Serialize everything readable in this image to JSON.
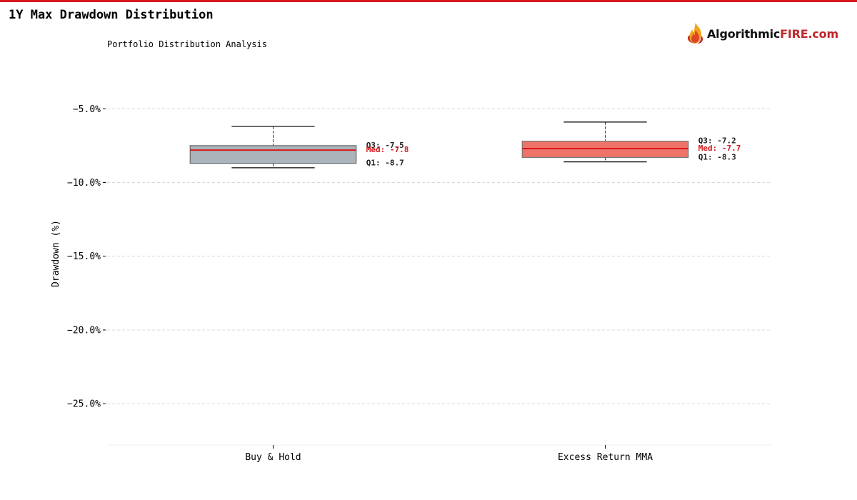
{
  "header": {
    "title": "1Y Max Drawdown Distribution",
    "subtitle": "Portfolio Distribution Analysis",
    "accent_color": "#d7191c"
  },
  "logo": {
    "text_main": "Algorithmic",
    "text_brand": "FIRE",
    "text_suffix": ".com",
    "icon": "flame-icon"
  },
  "chart_data": {
    "type": "box",
    "title": "1Y Max Drawdown Distribution",
    "subtitle": "Portfolio Distribution Analysis",
    "ylabel": "Drawdown (%)",
    "xlabel": "",
    "ylim": [
      -27.8,
      -1.5
    ],
    "yticks": [
      -5,
      -10,
      -15,
      -20,
      -25
    ],
    "ytick_labels": [
      "−5.0%",
      "−10.0%",
      "−15.0%",
      "−20.0%",
      "−25.0%"
    ],
    "grid": true,
    "categories": [
      "Buy & Hold",
      "Excess Return MMA"
    ],
    "series": [
      {
        "whisker_low": -9.0,
        "q1": -8.7,
        "median": -7.8,
        "q3": -7.5,
        "whisker_high": -6.2,
        "fill": "#aab4ba",
        "edge": "#666666",
        "q1_label": "Q1: -8.7",
        "median_label": "Med: -7.8",
        "q3_label": "Q3: -7.5"
      },
      {
        "whisker_low": -8.6,
        "q1": -8.3,
        "median": -7.7,
        "q3": -7.2,
        "whisker_high": -5.9,
        "fill": "#ee7369",
        "edge": "#777777",
        "q1_label": "Q1: -8.3",
        "median_label": "Med: -7.7",
        "q3_label": "Q3: -7.2"
      }
    ],
    "median_color": "#d7191c",
    "annotation_color": "#222222"
  }
}
